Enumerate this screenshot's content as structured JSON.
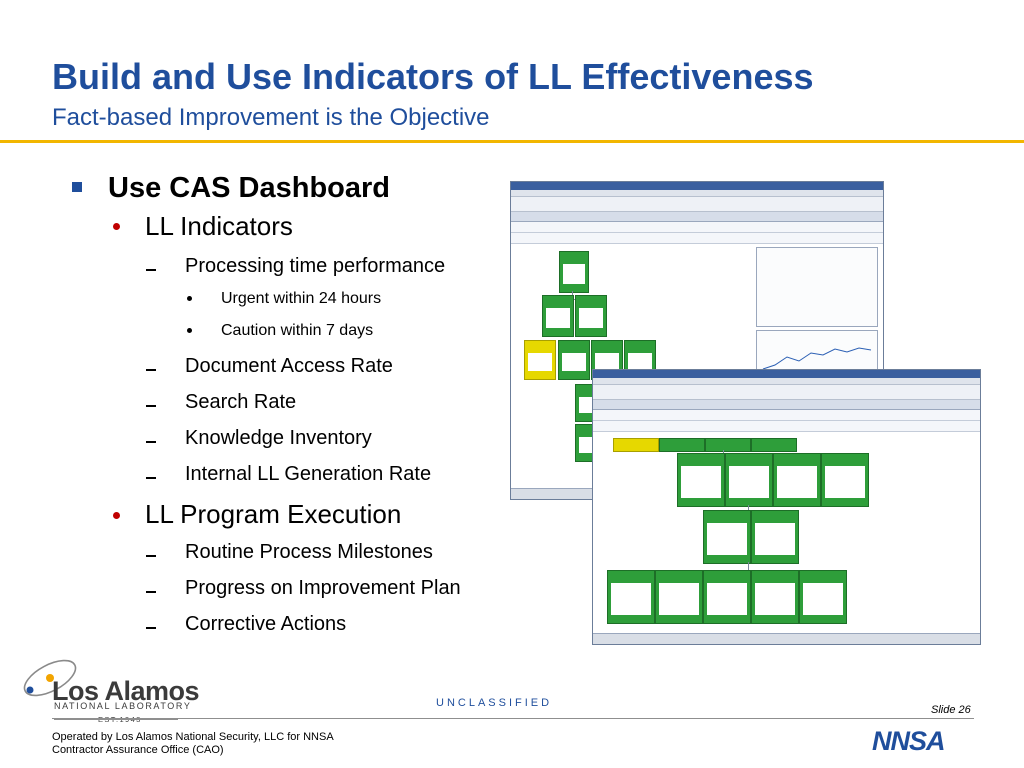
{
  "slide": {
    "title": "Build and Use Indicators of LL Effectiveness",
    "subtitle": "Fact-based Improvement is the Objective"
  },
  "bullets": {
    "level1": "Use CAS Dashboard",
    "ll_indicators": "LL Indicators",
    "processing_time": "Processing time performance",
    "urgent": "Urgent within 24 hours",
    "caution": "Caution within 7 days",
    "doc_access": "Document Access Rate",
    "search_rate": "Search Rate",
    "knowledge_inventory": "Knowledge Inventory",
    "internal_ll": "Internal LL Generation Rate",
    "program_execution": "LL Program Execution",
    "routine": "Routine Process Milestones",
    "progress": "Progress on Improvement Plan",
    "corrective": "Corrective Actions"
  },
  "footer": {
    "logo_name": "Los Alamos",
    "logo_sub": "NATIONAL LABORATORY",
    "logo_est": "EST.1943",
    "classification": "UNCLASSIFIED",
    "slide_number": "Slide 26",
    "operated_by_1": "Operated by Los Alamos National Security, LLC for NNSA",
    "operated_by_2": "Contractor Assurance Office (CAO)",
    "nnsa_logo": "NNSA"
  },
  "colors": {
    "title_blue": "#1f4e9c",
    "rule_gold": "#f2b600",
    "indicator_green": "#2e9e3a",
    "indicator_yellow": "#e6d800",
    "bullet_red": "#c00000"
  },
  "icons": {
    "level1_marker": "blue-square",
    "level2_marker": "red-dot",
    "level3_marker": "dash",
    "level4_marker": "black-dot",
    "lab_logo": "atom-orbit-logo",
    "agency_logo": "nnsa-logo"
  }
}
